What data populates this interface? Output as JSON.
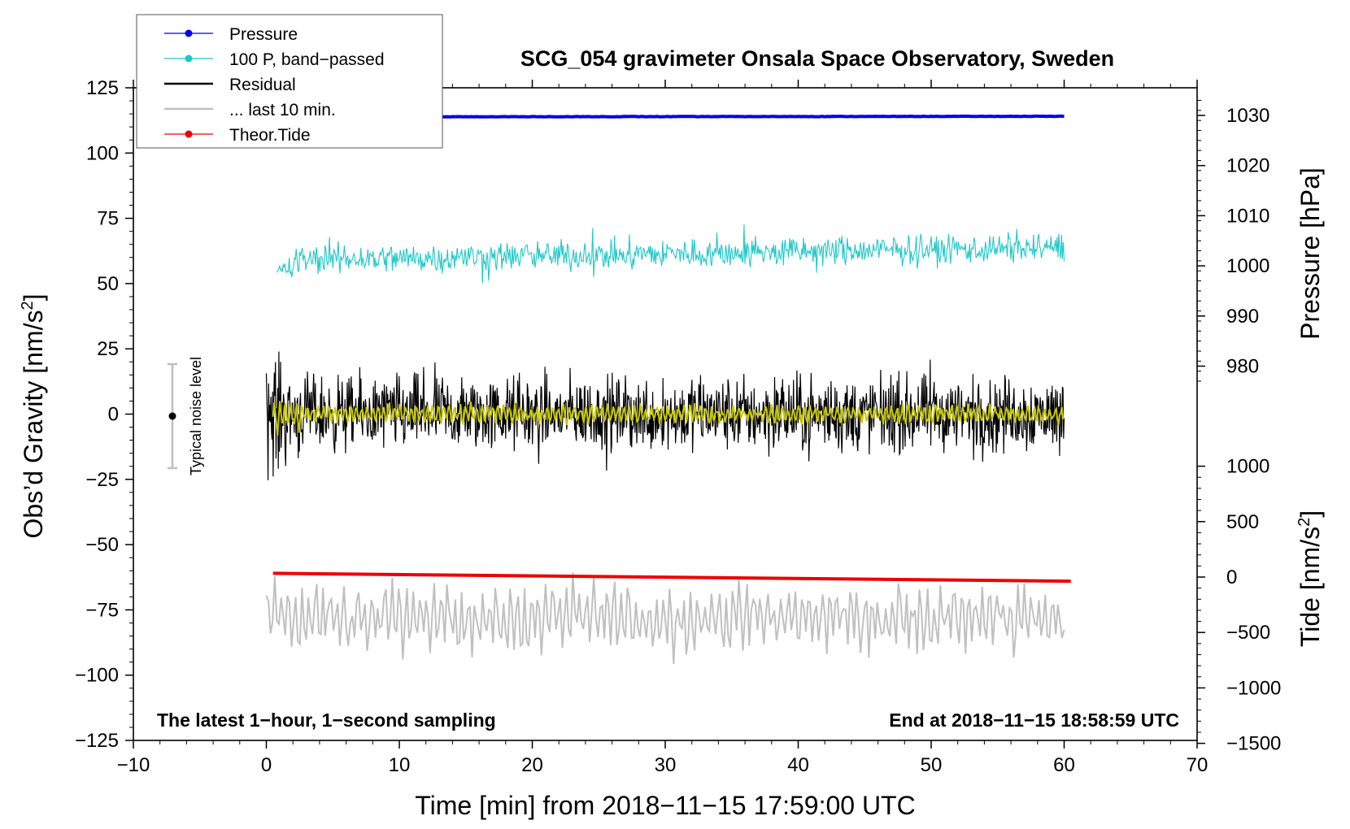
{
  "chart_data": {
    "type": "line",
    "title": "SCG_054 gravimeter Onsala Space Observatory, Sweden",
    "xlabel": "Time [min] from 2018−11−15 17:59:00 UTC",
    "ylabel_left": "Obs’d Gravity [nm/s",
    "ylabel_left_sup": "2",
    "ylabel_left_close": "]",
    "ylabel_pressure": "Pressure [hPa]",
    "ylabel_tide": "Tide [nm/s",
    "ylabel_tide_sup": "2",
    "ylabel_tide_close": "]",
    "xlim": [
      -10,
      70
    ],
    "ylim": [
      -125,
      125
    ],
    "x_ticks": [
      "−10",
      "0",
      "10",
      "20",
      "30",
      "40",
      "50",
      "60",
      "70"
    ],
    "y_ticks": [
      "125",
      "100",
      "75",
      "50",
      "25",
      "0",
      "−25",
      "−50",
      "−75",
      "−100",
      "−125"
    ],
    "pressure_ticks": [
      "1030",
      "1020",
      "1010",
      "1000",
      "990",
      "980"
    ],
    "tide_ticks": [
      "1000",
      "500",
      "0",
      "−500",
      "−1000",
      "−1500"
    ],
    "annotation_left": "The latest 1−hour, 1−second sampling",
    "annotation_right": "End at 2018−11−15 18:58:59 UTC",
    "noise_label": "Typical noise level",
    "noise_range": [
      -20,
      20
    ],
    "legend": [
      {
        "label": "Pressure",
        "color": "#0000ee",
        "marker": true
      },
      {
        "label": "100 P, band−passed",
        "color": "#20c8c8",
        "marker": true
      },
      {
        "label": "Residual",
        "color": "#000000",
        "marker": false
      },
      {
        "label": "... last 10 min.",
        "color": "#c0c0c0",
        "marker": false
      },
      {
        "label": "Theor.Tide",
        "color": "#ee0000",
        "marker": true
      }
    ],
    "series": [
      {
        "name": "Pressure",
        "color": "#0000ee",
        "x_range": [
          0,
          60
        ],
        "approx_value_hPa": 1029.7
      },
      {
        "name": "100 P, band-passed",
        "color": "#20c8c8",
        "x_range": [
          0.8,
          60
        ],
        "approx_mean_nm_s2": 62,
        "approx_amplitude": 12
      },
      {
        "name": "Residual",
        "color": "#000000",
        "x_range": [
          0,
          60
        ],
        "approx_mean_nm_s2": 0,
        "approx_amplitude": 22
      },
      {
        "name": "Residual smoothed",
        "color": "#c8c800",
        "x_range": [
          0.5,
          60
        ],
        "approx_mean_nm_s2": 0,
        "approx_amplitude": 4
      },
      {
        "name": "... last 10 min.",
        "color": "#c0c0c0",
        "x_range": [
          0,
          60
        ],
        "approx_mean_nm_s2": -78,
        "approx_amplitude": 12
      },
      {
        "name": "Theor.Tide",
        "color": "#ee0000",
        "x_start": 0.5,
        "x_end": 60.5,
        "y_start_nm_s2": -61,
        "y_end_nm_s2": -64
      }
    ]
  }
}
